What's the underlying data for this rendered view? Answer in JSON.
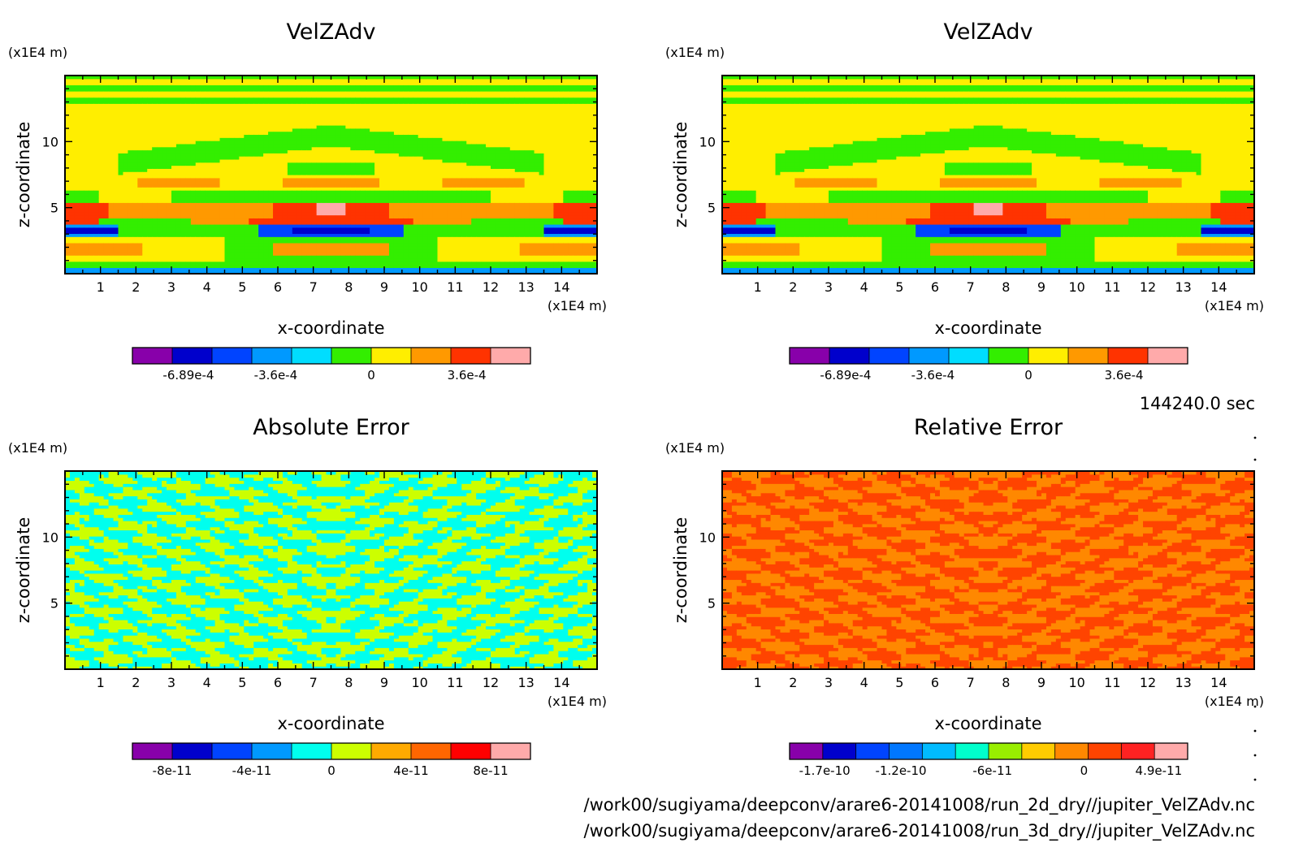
{
  "time_label": "144240.0 sec",
  "files": [
    "/work00/sugiyama/deepconv/arare6-20141008/run_2d_dry//jupiter_VelZAdv.nc",
    "/work00/sugiyama/deepconv/arare6-20141008/run_3d_dry//jupiter_VelZAdv.nc"
  ],
  "chart_data": [
    {
      "type": "heatmap",
      "title": "VelZAdv",
      "xlabel": "x-coordinate",
      "ylabel": "z-coordinate",
      "xunit": "(x1E4 m)",
      "yunit": "(x1E4 m)",
      "xlim": [
        0,
        15
      ],
      "ylim": [
        0,
        15
      ],
      "xticks": [
        "1",
        "2",
        "3",
        "4",
        "5",
        "6",
        "7",
        "8",
        "9",
        "10",
        "11",
        "12",
        "13",
        "14"
      ],
      "yticks": [
        "5",
        "10"
      ],
      "colorbar": {
        "colors": [
          "#8800aa",
          "#0000cc",
          "#0044ff",
          "#0099ff",
          "#00ddff",
          "#33ee00",
          "#ffee00",
          "#ff9900",
          "#ff3300",
          "#ffaaaa"
        ],
        "ticks": [
          {
            "label": "-6.89e-4",
            "value": -0.000689
          },
          {
            "label": "-3.6e-4",
            "value": -0.00036
          },
          {
            "label": "0",
            "value": 0
          },
          {
            "label": "3.6e-4",
            "value": 0.00036
          }
        ],
        "range": [
          -0.0009,
          0.0006
        ]
      }
    },
    {
      "type": "heatmap",
      "title": "VelZAdv",
      "xlabel": "x-coordinate",
      "ylabel": "z-coordinate",
      "xunit": "(x1E4 m)",
      "yunit": "(x1E4 m)",
      "xlim": [
        0,
        15
      ],
      "ylim": [
        0,
        15
      ],
      "xticks": [
        "1",
        "2",
        "3",
        "4",
        "5",
        "6",
        "7",
        "8",
        "9",
        "10",
        "11",
        "12",
        "13",
        "14"
      ],
      "yticks": [
        "5",
        "10"
      ],
      "colorbar": {
        "colors": [
          "#8800aa",
          "#0000cc",
          "#0044ff",
          "#0099ff",
          "#00ddff",
          "#33ee00",
          "#ffee00",
          "#ff9900",
          "#ff3300",
          "#ffaaaa"
        ],
        "ticks": [
          {
            "label": "-6.89e-4",
            "value": -0.000689
          },
          {
            "label": "-3.6e-4",
            "value": -0.00036
          },
          {
            "label": "0",
            "value": 0
          },
          {
            "label": "3.6e-4",
            "value": 0.00036
          }
        ],
        "range": [
          -0.0009,
          0.0006
        ]
      }
    },
    {
      "type": "heatmap",
      "title": "Absolute Error",
      "xlabel": "x-coordinate",
      "ylabel": "z-coordinate",
      "xunit": "(x1E4 m)",
      "yunit": "(x1E4 m)",
      "xlim": [
        0,
        15
      ],
      "ylim": [
        0,
        15
      ],
      "xticks": [
        "1",
        "2",
        "3",
        "4",
        "5",
        "6",
        "7",
        "8",
        "9",
        "10",
        "11",
        "12",
        "13",
        "14"
      ],
      "yticks": [
        "5",
        "10"
      ],
      "colorbar": {
        "colors": [
          "#8800aa",
          "#0000cc",
          "#0044ff",
          "#0099ff",
          "#00ffee",
          "#ccff00",
          "#ffaa00",
          "#ff6600",
          "#ff0000",
          "#ffaaaa"
        ],
        "ticks": [
          {
            "label": "-8e-11",
            "value": -8e-11
          },
          {
            "label": "-4e-11",
            "value": -4e-11
          },
          {
            "label": "0",
            "value": 0
          },
          {
            "label": "4e-11",
            "value": 4e-11
          },
          {
            "label": "8e-11",
            "value": 8e-11
          }
        ],
        "range": [
          -1e-10,
          1e-10
        ]
      }
    },
    {
      "type": "heatmap",
      "title": "Relative Error",
      "xlabel": "x-coordinate",
      "ylabel": "z-coordinate",
      "xunit": "(x1E4 m)",
      "yunit": "(x1E4 m)",
      "xlim": [
        0,
        15
      ],
      "ylim": [
        0,
        15
      ],
      "xticks": [
        "1",
        "2",
        "3",
        "4",
        "5",
        "6",
        "7",
        "8",
        "9",
        "10",
        "11",
        "12",
        "13",
        "14"
      ],
      "yticks": [
        "5",
        "10"
      ],
      "colorbar": {
        "colors": [
          "#8800aa",
          "#0000cc",
          "#0044ff",
          "#0077ff",
          "#00bbff",
          "#00ffcc",
          "#99ee00",
          "#ffcc00",
          "#ff8800",
          "#ff4400",
          "#ff2222",
          "#ffaaaa"
        ],
        "ticks": [
          {
            "label": "-1.7e-10",
            "value": -1.7e-10
          },
          {
            "label": "-1.2e-10",
            "value": -1.2e-10
          },
          {
            "label": "-6e-11",
            "value": -6e-11
          },
          {
            "label": "0",
            "value": 0
          },
          {
            "label": "4.9e-11",
            "value": 4.9e-11
          }
        ],
        "range": [
          -1.93e-10,
          6.8e-11
        ]
      }
    }
  ]
}
